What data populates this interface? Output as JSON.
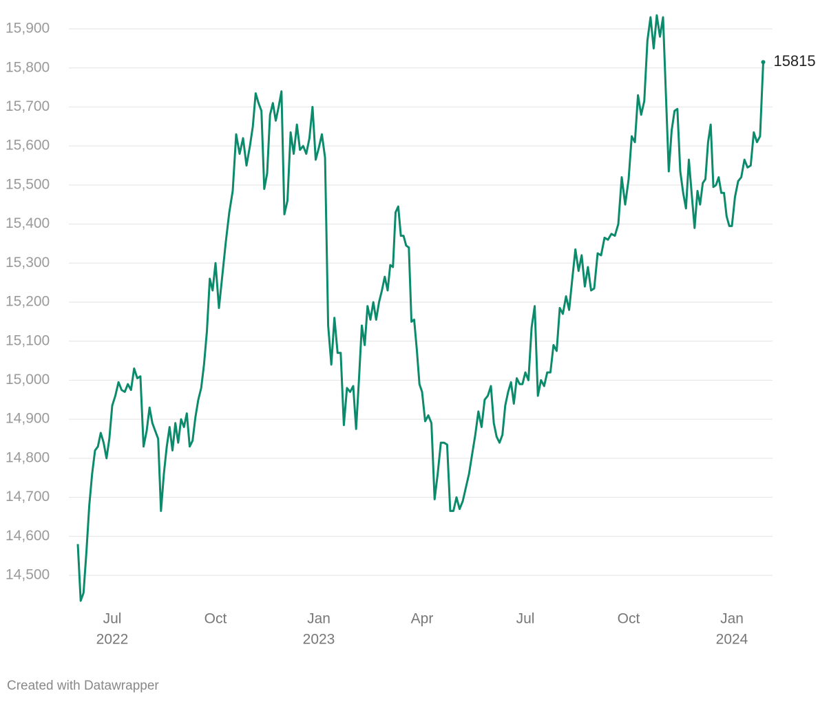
{
  "chart_data": {
    "type": "line",
    "color": "#0b8a6c",
    "credit": "Created with Datawrapper",
    "x": [
      "2022-06",
      "2022-06",
      "2022-06",
      "2022-06",
      "2022-06",
      "2022-06",
      "2022-06",
      "2022-06",
      "2022-06",
      "2022-06",
      "2022-06",
      "2022-06",
      "2022-07",
      "2022-07",
      "2022-07",
      "2022-07",
      "2022-07",
      "2022-07",
      "2022-07",
      "2022-07",
      "2022-07",
      "2022-07",
      "2022-07",
      "2022-08",
      "2022-08",
      "2022-08",
      "2022-08",
      "2022-08",
      "2022-08",
      "2022-08",
      "2022-08",
      "2022-08",
      "2022-08",
      "2022-08",
      "2022-08",
      "2022-09",
      "2022-09",
      "2022-09",
      "2022-09",
      "2022-09",
      "2022-09",
      "2022-09",
      "2022-09",
      "2022-09",
      "2022-09",
      "2022-09",
      "2022-09",
      "2022-10",
      "2022-10",
      "2022-10",
      "2022-10",
      "2022-10",
      "2022-10",
      "2022-10",
      "2022-10",
      "2022-10",
      "2022-10",
      "2022-11",
      "2022-11",
      "2022-11",
      "2022-11",
      "2022-11",
      "2022-11",
      "2022-11",
      "2022-11",
      "2022-11",
      "2022-11",
      "2022-11",
      "2022-11",
      "2022-12",
      "2022-12",
      "2022-12",
      "2022-12",
      "2022-12",
      "2022-12",
      "2022-12",
      "2022-12",
      "2022-12",
      "2022-12",
      "2022-12",
      "2023-01",
      "2023-01",
      "2023-01",
      "2023-01",
      "2023-01",
      "2023-01",
      "2023-01",
      "2023-01",
      "2023-01",
      "2023-01",
      "2023-01",
      "2023-02",
      "2023-02",
      "2023-02",
      "2023-02",
      "2023-02",
      "2023-02",
      "2023-02",
      "2023-02",
      "2023-02",
      "2023-02",
      "2023-02",
      "2023-02",
      "2023-03",
      "2023-03",
      "2023-03",
      "2023-03",
      "2023-03",
      "2023-03",
      "2023-03",
      "2023-03",
      "2023-03",
      "2023-03",
      "2023-03",
      "2023-03",
      "2023-03",
      "2023-04",
      "2023-04",
      "2023-04",
      "2023-04",
      "2023-04",
      "2023-04",
      "2023-04",
      "2023-04",
      "2023-04",
      "2023-04",
      "2023-04",
      "2023-05",
      "2023-05",
      "2023-05",
      "2023-05",
      "2023-05",
      "2023-05",
      "2023-05",
      "2023-05",
      "2023-05",
      "2023-05",
      "2023-05",
      "2023-06",
      "2023-06",
      "2023-06",
      "2023-06",
      "2023-06",
      "2023-06",
      "2023-06",
      "2023-06",
      "2023-06",
      "2023-06",
      "2023-06",
      "2023-06",
      "2023-07",
      "2023-07",
      "2023-07",
      "2023-07",
      "2023-07",
      "2023-07",
      "2023-07",
      "2023-07",
      "2023-07",
      "2023-07",
      "2023-07",
      "2023-08",
      "2023-08",
      "2023-08",
      "2023-08",
      "2023-08",
      "2023-08",
      "2023-08",
      "2023-08",
      "2023-08",
      "2023-08",
      "2023-08",
      "2023-09",
      "2023-09",
      "2023-09",
      "2023-09",
      "2023-09",
      "2023-09",
      "2023-09",
      "2023-09",
      "2023-09",
      "2023-09",
      "2023-10",
      "2023-10",
      "2023-10",
      "2023-10",
      "2023-10",
      "2023-10",
      "2023-10",
      "2023-10",
      "2023-10",
      "2023-10",
      "2023-10",
      "2023-11",
      "2023-11",
      "2023-11",
      "2023-11",
      "2023-11",
      "2023-11",
      "2023-11",
      "2023-11",
      "2023-11",
      "2023-11",
      "2023-11",
      "2023-11",
      "2023-12",
      "2023-12",
      "2023-12",
      "2023-12",
      "2023-12",
      "2023-12",
      "2023-12",
      "2023-12",
      "2023-12",
      "2023-12",
      "2023-12",
      "2023-12",
      "2023-12",
      "2024-01",
      "2024-01",
      "2024-01",
      "2024-01",
      "2024-01",
      "2024-01",
      "2024-01",
      "2024-01",
      "2024-01",
      "2024-01",
      "2024-01"
    ],
    "values": [
      14580,
      14435,
      14455,
      14560,
      14680,
      14760,
      14820,
      14830,
      14865,
      14840,
      14800,
      14850,
      14935,
      14960,
      14995,
      14975,
      14970,
      14990,
      14975,
      15030,
      15005,
      15010,
      14830,
      14870,
      14930,
      14890,
      14870,
      14850,
      14665,
      14760,
      14830,
      14880,
      14820,
      14890,
      14840,
      14900,
      14880,
      14915,
      14830,
      14845,
      14905,
      14950,
      14980,
      15040,
      15125,
      15260,
      15230,
      15300,
      15185,
      15270,
      15355,
      15430,
      15485,
      15630,
      15580,
      15620,
      15550,
      15600,
      15650,
      15735,
      15710,
      15690,
      15490,
      15530,
      15680,
      15710,
      15665,
      15700,
      15740,
      15425,
      15460,
      15635,
      15580,
      15655,
      15590,
      15600,
      15580,
      15620,
      15700,
      15565,
      15595,
      15630,
      15570,
      15140,
      15040,
      15160,
      15070,
      15070,
      14885,
      14980,
      14970,
      14985,
      14875,
      15000,
      15140,
      15090,
      15190,
      15155,
      15200,
      15155,
      15200,
      15230,
      15265,
      15230,
      15295,
      15290,
      15430,
      15445,
      15370,
      15370,
      15345,
      15340,
      15150,
      15155,
      15080,
      14990,
      14970,
      14895,
      14910,
      14890,
      14695,
      14760,
      14840,
      14840,
      14835,
      14665,
      14665,
      14700,
      14670,
      14690,
      14725,
      14760,
      14810,
      14860,
      14920,
      14880,
      14950,
      14960,
      14985,
      14890,
      14855,
      14840,
      14860,
      14935,
      14970,
      14995,
      14940,
      15005,
      14990,
      14990,
      15020,
      15000,
      15135,
      15190,
      14960,
      15000,
      14985,
      15020,
      15020,
      15090,
      15075,
      15185,
      15170,
      15215,
      15180,
      15260,
      15335,
      15280,
      15320,
      15240,
      15290,
      15230,
      15235,
      15325,
      15320,
      15365,
      15360,
      15375,
      15370,
      15400,
      15520,
      15450,
      15515,
      15625,
      15610,
      15730,
      15680,
      15715,
      15870,
      15930,
      15850,
      15935,
      15880,
      15930,
      15730,
      15535,
      15640,
      15690,
      15695,
      15535,
      15480,
      15440,
      15565,
      15475,
      15390,
      15485,
      15450,
      15505,
      15515,
      15610,
      15655,
      15495,
      15500,
      15520,
      15480,
      15480,
      15420,
      15395,
      15395,
      15470,
      15510,
      15520,
      15565,
      15545,
      15550,
      15635,
      15610,
      15625,
      15815
    ],
    "xlim": [
      "2022-06",
      "2024-02"
    ],
    "xticks": [
      {
        "value": "2022-07",
        "label": [
          "Jul",
          "2022"
        ]
      },
      {
        "value": "2022-10",
        "label": "Oct"
      },
      {
        "value": "2023-01",
        "label": [
          "Jan",
          "2023"
        ]
      },
      {
        "value": "2023-04",
        "label": "Apr"
      },
      {
        "value": "2023-07",
        "label": "Jul"
      },
      {
        "value": "2023-10",
        "label": "Oct"
      },
      {
        "value": "2024-01",
        "label": [
          "Jan",
          "2024"
        ]
      }
    ],
    "ylim": [
      14500,
      15900
    ],
    "yticks": [
      {
        "value": 14500,
        "label": "14,500"
      },
      {
        "value": 14600,
        "label": "14,600"
      },
      {
        "value": 14700,
        "label": "14,700"
      },
      {
        "value": 14800,
        "label": "14,800"
      },
      {
        "value": 14900,
        "label": "14,900"
      },
      {
        "value": 15000,
        "label": "15,000"
      },
      {
        "value": 15100,
        "label": "15,100"
      },
      {
        "value": 15200,
        "label": "15,200"
      },
      {
        "value": 15300,
        "label": "15,300"
      },
      {
        "value": 15400,
        "label": "15,400"
      },
      {
        "value": 15500,
        "label": "15,500"
      },
      {
        "value": 15600,
        "label": "15,600"
      },
      {
        "value": 15700,
        "label": "15,700"
      },
      {
        "value": 15800,
        "label": "15,800"
      },
      {
        "value": 15900,
        "label": "15,900"
      }
    ],
    "grid": true
  }
}
